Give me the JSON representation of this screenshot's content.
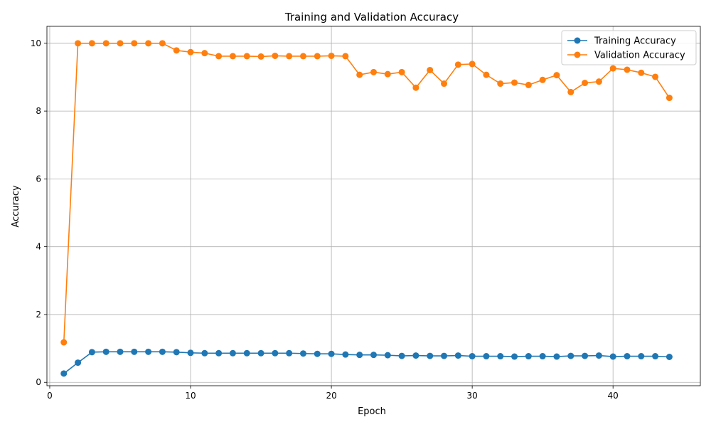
{
  "chart_data": {
    "type": "line",
    "title": "Training and Validation Accuracy",
    "xlabel": "Epoch",
    "ylabel": "Accuracy",
    "xlim": [
      -0.2,
      46.2
    ],
    "ylim": [
      -0.1,
      10.5
    ],
    "xticks": [
      0,
      10,
      20,
      30,
      40
    ],
    "yticks": [
      0,
      2,
      4,
      6,
      8,
      10
    ],
    "grid": true,
    "legend_position": "top-right",
    "x": [
      1,
      2,
      3,
      4,
      5,
      6,
      7,
      8,
      9,
      10,
      11,
      12,
      13,
      14,
      15,
      16,
      17,
      18,
      19,
      20,
      21,
      22,
      23,
      24,
      25,
      26,
      27,
      28,
      29,
      30,
      31,
      32,
      33,
      34,
      35,
      36,
      37,
      38,
      39,
      40,
      41,
      42,
      43,
      44
    ],
    "series": [
      {
        "name": "Training Accuracy",
        "color": "#1f77b4",
        "values": [
          0.26,
          0.58,
          0.89,
          0.9,
          0.9,
          0.9,
          0.9,
          0.9,
          0.89,
          0.87,
          0.86,
          0.86,
          0.86,
          0.86,
          0.86,
          0.86,
          0.86,
          0.85,
          0.84,
          0.84,
          0.82,
          0.81,
          0.81,
          0.8,
          0.78,
          0.79,
          0.78,
          0.78,
          0.79,
          0.77,
          0.77,
          0.77,
          0.76,
          0.77,
          0.77,
          0.76,
          0.78,
          0.78,
          0.79,
          0.76,
          0.77,
          0.77,
          0.77,
          0.75
        ]
      },
      {
        "name": "Validation Accuracy",
        "color": "#ff7f0e",
        "values": [
          1.18,
          10.0,
          10.0,
          10.0,
          10.0,
          10.0,
          10.0,
          10.0,
          9.79,
          9.74,
          9.71,
          9.62,
          9.62,
          9.62,
          9.61,
          9.63,
          9.62,
          9.62,
          9.62,
          9.63,
          9.62,
          9.07,
          9.15,
          9.09,
          9.15,
          8.69,
          9.21,
          8.81,
          9.37,
          9.39,
          9.07,
          8.81,
          8.84,
          8.77,
          8.92,
          9.06,
          8.56,
          8.83,
          8.87,
          9.26,
          9.22,
          9.13,
          9.01,
          8.39
        ]
      }
    ]
  }
}
